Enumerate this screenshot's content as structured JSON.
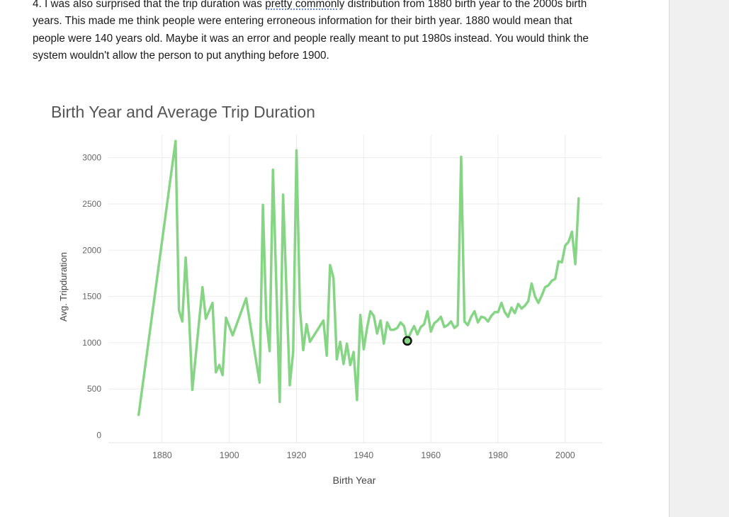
{
  "document": {
    "paragraph": {
      "before": "4.  I was also surprised that the trip duration was ",
      "marked": "pretty commonly",
      "after": " distribution from 1880 birth year to the 2000s birth years. This made me think people were entering erroneous information for their birth year. 1880 would mean that people were 140 years old. Maybe it was an error and people really meant to put 1980s instead. You would think the system wouldn't allow the person to put anything before 1900."
    }
  },
  "colors": {
    "line": "#85d585",
    "text": "#1a1a1a",
    "grid": "#ececec",
    "axis_text": "#666666"
  },
  "chart_data": {
    "type": "line",
    "title": "Birth Year and Average Trip Duration",
    "xlabel": "Birth Year",
    "ylabel": "Avg. Tripduration",
    "xlim": [
      1864,
      2011
    ],
    "ylim": [
      -80,
      3250
    ],
    "x_ticks": [
      1880,
      1900,
      1920,
      1940,
      1960,
      1980,
      2000
    ],
    "y_ticks": [
      0,
      500,
      1000,
      1500,
      2000,
      2500,
      3000
    ],
    "grid": true,
    "highlight_point": {
      "x": 1953,
      "y": 1020
    },
    "series": [
      {
        "x": [
          1873,
          1884,
          1885,
          1886,
          1887,
          1888,
          1889,
          1892,
          1893,
          1895,
          1896,
          1897,
          1898,
          1899,
          1901,
          1905,
          1909,
          1910,
          1911,
          1912,
          1913,
          1915,
          1916,
          1918,
          1919,
          1920,
          1921,
          1922,
          1923,
          1924,
          1928,
          1929,
          1930,
          1931,
          1932,
          1933,
          1934,
          1935,
          1936,
          1937,
          1938,
          1939,
          1940,
          1941,
          1942,
          1943,
          1944,
          1945,
          1946,
          1947,
          1948,
          1949,
          1950,
          1951,
          1952,
          1953,
          1954,
          1955,
          1956,
          1957,
          1958,
          1959,
          1960,
          1961,
          1962,
          1963,
          1964,
          1965,
          1966,
          1967,
          1968,
          1969,
          1970,
          1971,
          1972,
          1973,
          1974,
          1975,
          1976,
          1977,
          1978,
          1979,
          1980,
          1981,
          1982,
          1983,
          1984,
          1985,
          1986,
          1987,
          1988,
          1989,
          1990,
          1991,
          1992,
          1993,
          1994,
          1995,
          1996,
          1997,
          1998,
          1999,
          2000,
          2001,
          2002,
          2003,
          2004
        ],
        "y": [
          220,
          3180,
          1350,
          1230,
          1920,
          1300,
          490,
          1600,
          1260,
          1430,
          680,
          760,
          650,
          1270,
          1080,
          1480,
          570,
          2490,
          1250,
          910,
          2870,
          360,
          2600,
          540,
          900,
          3080,
          1380,
          920,
          1200,
          1010,
          1240,
          860,
          1840,
          1700,
          820,
          1010,
          770,
          990,
          760,
          900,
          380,
          1300,
          930,
          1160,
          1340,
          1290,
          1100,
          1240,
          990,
          1220,
          1140,
          1140,
          1160,
          1220,
          1180,
          1020,
          1110,
          1180,
          1090,
          1170,
          1200,
          1340,
          1120,
          1210,
          1240,
          1280,
          1170,
          1190,
          1230,
          1160,
          1190,
          3010,
          1230,
          1190,
          1280,
          1340,
          1220,
          1280,
          1270,
          1230,
          1290,
          1330,
          1330,
          1430,
          1330,
          1280,
          1380,
          1320,
          1420,
          1370,
          1400,
          1450,
          1640,
          1500,
          1430,
          1510,
          1600,
          1620,
          1670,
          1690,
          1880,
          1870,
          2050,
          2090,
          2200,
          1850,
          2560
        ]
      }
    ]
  }
}
